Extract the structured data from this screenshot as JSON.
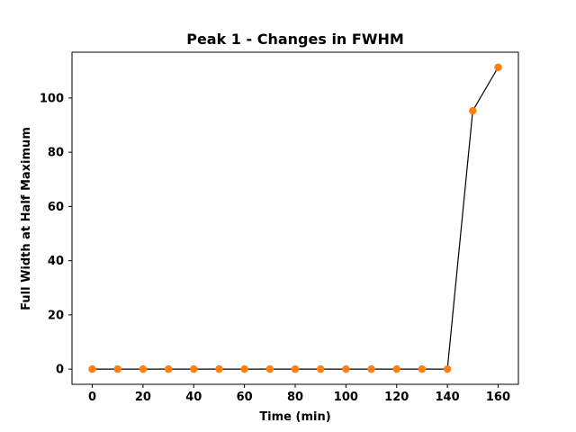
{
  "chart_data": {
    "type": "line",
    "title": "Peak 1 - Changes in FWHM",
    "xlabel": "Time (min)",
    "ylabel": "Full Width at Half Maximum",
    "xlim": [
      -8,
      168
    ],
    "ylim": [
      -5.6,
      116.9
    ],
    "xticks": [
      0,
      20,
      40,
      60,
      80,
      100,
      120,
      140,
      160
    ],
    "yticks": [
      0,
      20,
      40,
      60,
      80,
      100
    ],
    "grid": false,
    "series": [
      {
        "x": [
          0,
          10,
          20,
          30,
          40,
          50,
          60,
          70,
          80,
          90,
          100,
          110,
          120,
          130,
          140,
          150,
          160
        ],
        "y": [
          0,
          0,
          0,
          0,
          0,
          0,
          0,
          0,
          0,
          0,
          0,
          0,
          0,
          0,
          0,
          95.3,
          111.3
        ],
        "line_color": "#000000",
        "marker_color": "#ff7f0e"
      }
    ]
  }
}
